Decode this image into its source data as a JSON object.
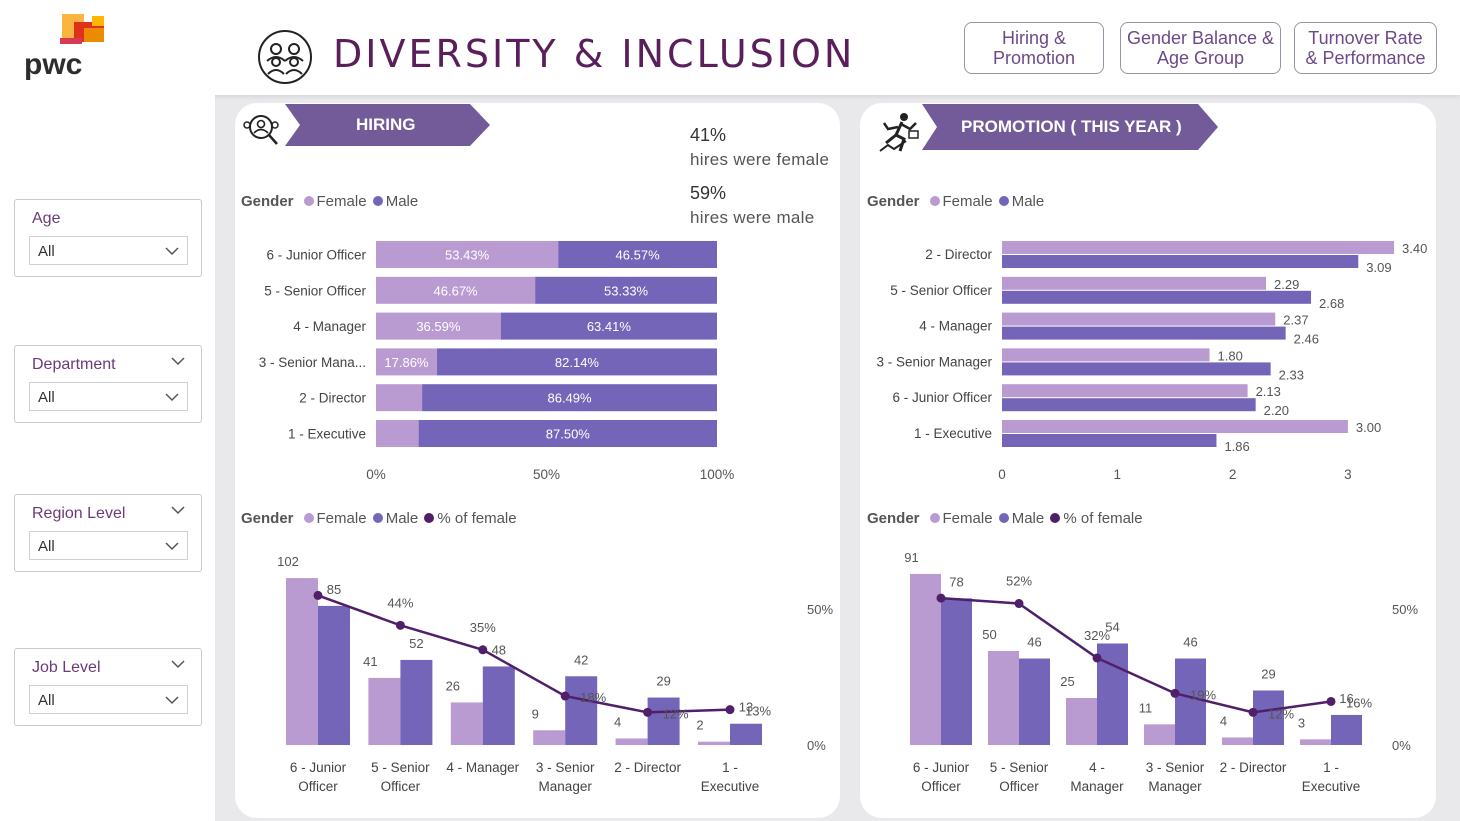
{
  "header": {
    "title": "DIVERSITY  &  INCLUSION",
    "logo_text": "pwc",
    "nav": [
      {
        "line1": "Hiring &",
        "line2": "Promotion"
      },
      {
        "line1": "Gender Balance &",
        "line2": "Age Group"
      },
      {
        "line1": "Turnover Rate",
        "line2": "& Performance"
      }
    ]
  },
  "filters": [
    {
      "label": "Age",
      "value": "All"
    },
    {
      "label": "Department",
      "value": "All"
    },
    {
      "label": "Region Level",
      "value": "All"
    },
    {
      "label": "Job Level",
      "value": "All"
    }
  ],
  "colors": {
    "female": "#b99bd2",
    "male": "#7565b8",
    "pct_line": "#4f2069",
    "banner": "#735a98",
    "title": "#5a1e5a"
  },
  "hiring": {
    "banner": "HIRING",
    "kpi_female_value": "41%",
    "kpi_female_text": "hires were female",
    "kpi_male_value": "59%",
    "kpi_male_text": "hires were male"
  },
  "promotion": {
    "banner": "PROMOTION ( THIS YEAR )"
  },
  "legend": {
    "gender": "Gender",
    "female": "Female",
    "male": "Male",
    "pct_female": "% of female"
  },
  "chart_data": [
    {
      "id": "hiring_stacked",
      "type": "bar",
      "orientation": "horizontal",
      "stacking": "percent",
      "categories": [
        "6 - Junior Officer",
        "5 - Senior Officer",
        "4 - Manager",
        "3 - Senior Mana...",
        "2 - Director",
        "1 - Executive"
      ],
      "series": [
        {
          "name": "Female",
          "values": [
            53.43,
            46.67,
            36.59,
            17.86,
            13.51,
            12.5
          ],
          "labels": [
            "53.43%",
            "46.67%",
            "36.59%",
            "17.86%",
            "",
            ""
          ]
        },
        {
          "name": "Male",
          "values": [
            46.57,
            53.33,
            63.41,
            82.14,
            86.49,
            87.5
          ],
          "labels": [
            "46.57%",
            "53.33%",
            "63.41%",
            "82.14%",
            "86.49%",
            "87.50%"
          ]
        }
      ],
      "xticks": [
        "0%",
        "50%",
        "100%"
      ],
      "xlim": [
        0,
        100
      ]
    },
    {
      "id": "promotion_grouped",
      "type": "bar",
      "orientation": "horizontal",
      "categories": [
        "2 - Director",
        "5 - Senior Officer",
        "4 - Manager",
        "3 - Senior Manager",
        "6 - Junior Officer",
        "1 - Executive"
      ],
      "series": [
        {
          "name": "Female",
          "values": [
            3.4,
            2.29,
            2.37,
            1.8,
            2.13,
            3.0
          ],
          "labels": [
            "3.40",
            "2.29",
            "2.37",
            "1.80",
            "2.13",
            "3.00"
          ]
        },
        {
          "name": "Male",
          "values": [
            3.09,
            2.68,
            2.46,
            2.33,
            2.2,
            1.86
          ],
          "labels": [
            "3.09",
            "2.68",
            "2.46",
            "2.33",
            "2.20",
            "1.86"
          ]
        }
      ],
      "xticks": [
        "0",
        "1",
        "2",
        "3"
      ],
      "xlim": [
        0,
        3.4
      ]
    },
    {
      "id": "hiring_combo",
      "type": "bar",
      "categories": [
        [
          "6 - Junior",
          "Officer"
        ],
        [
          "5 - Senior",
          "Officer"
        ],
        [
          "4 - Manager",
          ""
        ],
        [
          "3 - Senior",
          "Manager"
        ],
        [
          "2 - Director",
          ""
        ],
        [
          "1 -",
          "Executive"
        ]
      ],
      "series": [
        {
          "name": "Female",
          "values": [
            102,
            41,
            26,
            9,
            4,
            2
          ]
        },
        {
          "name": "Male",
          "values": [
            85,
            52,
            48,
            42,
            29,
            13
          ]
        }
      ],
      "line": {
        "name": "% of female",
        "values": [
          55,
          44,
          35,
          18,
          12,
          13
        ],
        "labels": [
          "",
          "44%",
          "35%",
          "18%",
          "12%",
          "13%"
        ]
      },
      "ylim": [
        0,
        110
      ],
      "y2ticks": [
        "50%",
        "0%"
      ],
      "y2lim": [
        0,
        50
      ]
    },
    {
      "id": "promotion_combo",
      "type": "bar",
      "categories": [
        [
          "6 - Junior",
          "Officer"
        ],
        [
          "5 - Senior",
          "Officer"
        ],
        [
          "4 -",
          "Manager"
        ],
        [
          "3 - Senior",
          "Manager"
        ],
        [
          "2 - Director",
          ""
        ],
        [
          "1 -",
          "Executive"
        ]
      ],
      "series": [
        {
          "name": "Female",
          "values": [
            91,
            50,
            25,
            11,
            4,
            3
          ]
        },
        {
          "name": "Male",
          "values": [
            78,
            46,
            54,
            46,
            29,
            16
          ]
        }
      ],
      "line": {
        "name": "% of female",
        "values": [
          54,
          52,
          32,
          19,
          12,
          16
        ],
        "labels": [
          "",
          "52%",
          "32%",
          "19%",
          "12%",
          "16%"
        ]
      },
      "ylim": [
        0,
        100
      ],
      "y2ticks": [
        "50%",
        "0%"
      ],
      "y2lim": [
        0,
        50
      ]
    }
  ]
}
